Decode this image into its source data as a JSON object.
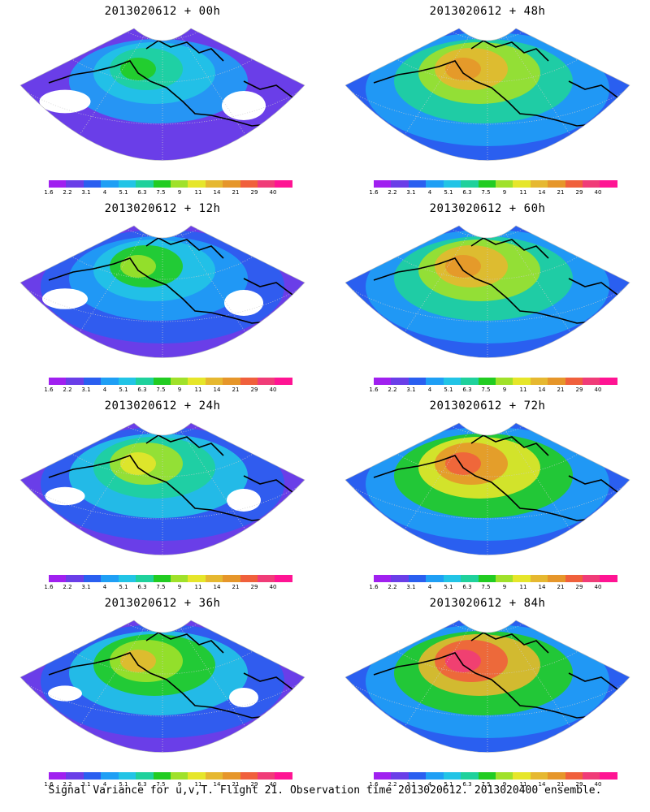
{
  "caption": "Signal Variance for u,v,T. Flight 21. Observation time 2013020612. 2013020400 ensemble.",
  "colorbar": {
    "labels": [
      "1.6",
      "2.2",
      "3.1",
      "4",
      "5.1",
      "6.3",
      "7.5",
      "9",
      "11",
      "14",
      "21",
      "29",
      "40"
    ],
    "colors": [
      "#a020f0",
      "#6a3ee8",
      "#2a5ff0",
      "#1f9ff5",
      "#22c4e6",
      "#1fd19c",
      "#22cc22",
      "#a0e12a",
      "#e6e62a",
      "#e6b830",
      "#e6962a",
      "#f0603c",
      "#f03c78",
      "#ff1493"
    ]
  },
  "panels": [
    {
      "title": "2013020612 + 00h",
      "intensity": 0.1
    },
    {
      "title": "2013020612 + 48h",
      "intensity": 0.55
    },
    {
      "title": "2013020612 + 12h",
      "intensity": 0.2
    },
    {
      "title": "2013020612 + 60h",
      "intensity": 0.6
    },
    {
      "title": "2013020612 + 24h",
      "intensity": 0.3
    },
    {
      "title": "2013020612 + 72h",
      "intensity": 0.7
    },
    {
      "title": "2013020612 + 36h",
      "intensity": 0.4
    },
    {
      "title": "2013020612 + 84h",
      "intensity": 0.8
    }
  ]
}
